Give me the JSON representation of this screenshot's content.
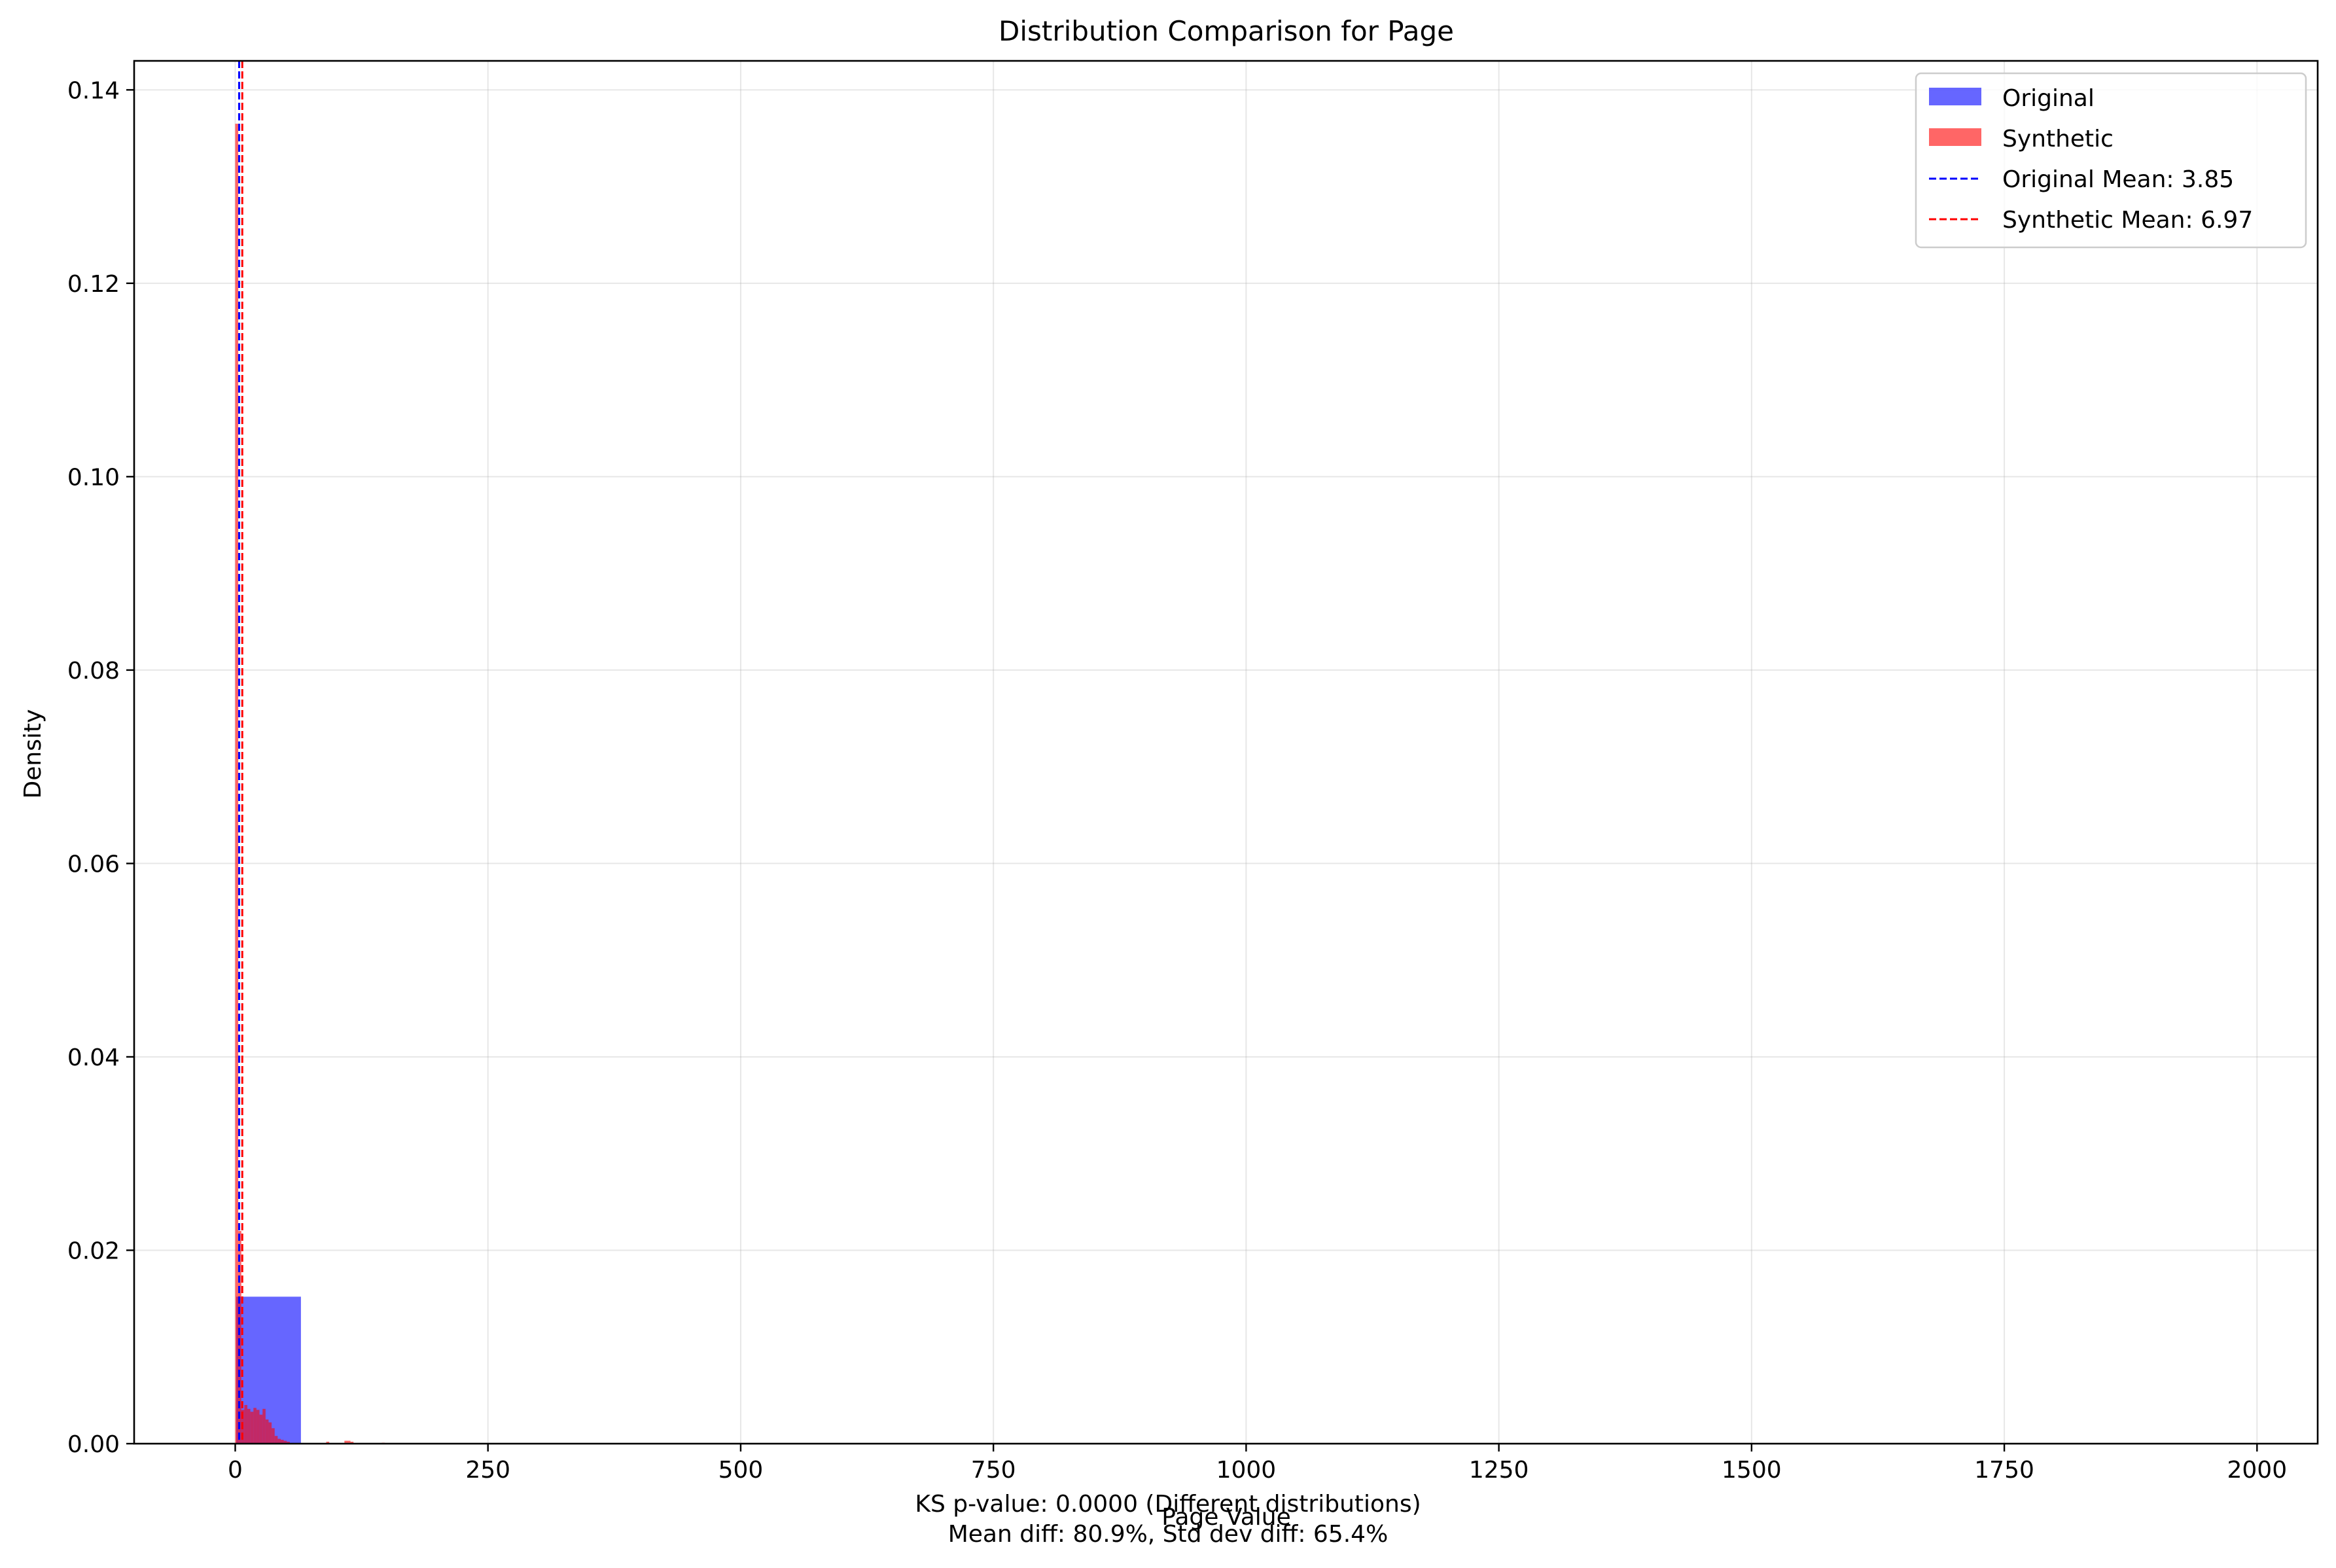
{
  "chart_data": {
    "type": "bar",
    "title": "Distribution Comparison for Page",
    "xlabel": "Page Value",
    "ylabel": "Density",
    "xlim": [
      -100,
      2060
    ],
    "ylim": [
      0,
      0.143
    ],
    "x_ticks": [
      0,
      250,
      500,
      750,
      1000,
      1250,
      1500,
      1750,
      2000
    ],
    "x_tick_labels": [
      "0",
      "250",
      "500",
      "750",
      "1000",
      "1250",
      "1500",
      "1750",
      "2000"
    ],
    "y_ticks": [
      0,
      0.02,
      0.04,
      0.06,
      0.08,
      0.1,
      0.12,
      0.14
    ],
    "y_tick_labels": [
      "0.00",
      "0.02",
      "0.04",
      "0.06",
      "0.08",
      "0.10",
      "0.12",
      "0.14"
    ],
    "grid": true,
    "legend_position": "top-right",
    "series": [
      {
        "name": "Original",
        "kind": "histogram",
        "color": "#0000ff",
        "opacity": 0.6,
        "bins": [
          {
            "x0": 1,
            "x1": 65,
            "density": 0.0152
          }
        ]
      },
      {
        "name": "Synthetic",
        "kind": "histogram",
        "color": "#ff0000",
        "opacity": 0.6,
        "bins": [
          {
            "x0": 0,
            "x1": 3,
            "density": 0.1365
          },
          {
            "x0": 3,
            "x1": 6,
            "density": 0.022
          },
          {
            "x0": 6,
            "x1": 9,
            "density": 0.0035
          },
          {
            "x0": 9,
            "x1": 12,
            "density": 0.004
          },
          {
            "x0": 12,
            "x1": 15,
            "density": 0.0036
          },
          {
            "x0": 15,
            "x1": 18,
            "density": 0.0033
          },
          {
            "x0": 18,
            "x1": 21,
            "density": 0.0037
          },
          {
            "x0": 21,
            "x1": 24,
            "density": 0.0035
          },
          {
            "x0": 24,
            "x1": 27,
            "density": 0.003
          },
          {
            "x0": 27,
            "x1": 30,
            "density": 0.0036
          },
          {
            "x0": 30,
            "x1": 33,
            "density": 0.0025
          },
          {
            "x0": 33,
            "x1": 36,
            "density": 0.0022
          },
          {
            "x0": 36,
            "x1": 39,
            "density": 0.0016
          },
          {
            "x0": 39,
            "x1": 42,
            "density": 0.0008
          },
          {
            "x0": 42,
            "x1": 45,
            "density": 0.0005
          },
          {
            "x0": 45,
            "x1": 48,
            "density": 0.0004
          },
          {
            "x0": 48,
            "x1": 51,
            "density": 0.0003
          },
          {
            "x0": 51,
            "x1": 54,
            "density": 0.0002
          },
          {
            "x0": 90,
            "x1": 93,
            "density": 0.0002
          },
          {
            "x0": 108,
            "x1": 114,
            "density": 0.0003
          },
          {
            "x0": 114,
            "x1": 117,
            "density": 0.0002
          },
          {
            "x0": 145,
            "x1": 148,
            "density": 0.0001
          }
        ]
      }
    ],
    "mean_lines": [
      {
        "name": "Original Mean: 3.85",
        "x": 3.85,
        "color": "#0000ff",
        "style": "dashed"
      },
      {
        "name": "Synthetic Mean: 6.97",
        "x": 6.97,
        "color": "#ff0000",
        "style": "dashed"
      }
    ],
    "annotation_lines": [
      "KS p-value: 0.0000 (Different distributions)",
      "Mean diff: 80.9%, Std dev diff: 65.4%"
    ]
  }
}
